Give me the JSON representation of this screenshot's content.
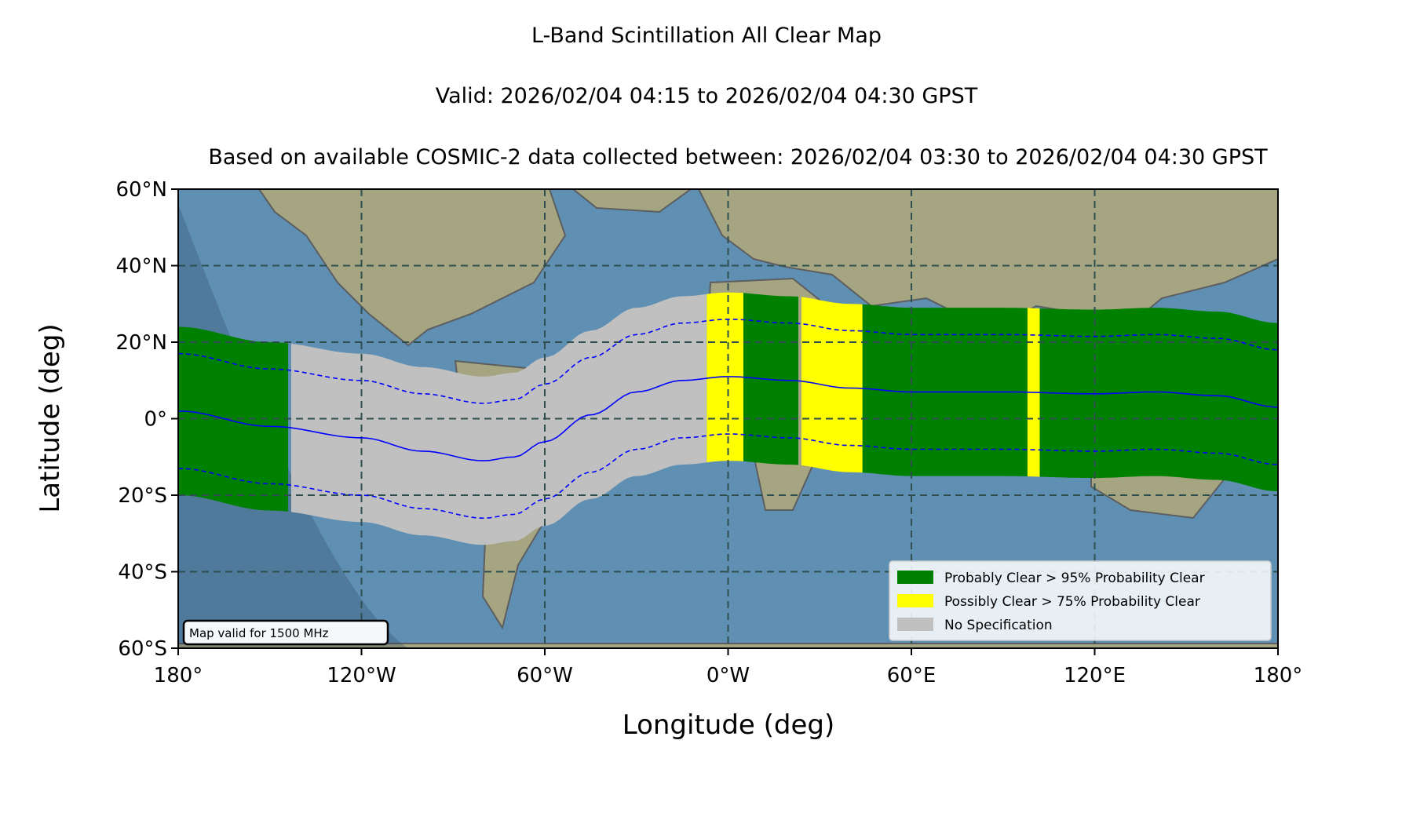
{
  "chart_data": {
    "type": "map",
    "title": "L-Band Scintillation All Clear Map",
    "valid_line": "Valid: 2026/02/04 04:15 to 2026/02/04 04:30 GPST",
    "source_line": "Based on available COSMIC-2 data collected between: 2026/02/04 03:30 to 2026/02/04 04:30 GPST",
    "xlabel": "Longitude (deg)",
    "ylabel": "Latitude (deg)",
    "xlim": [
      -180,
      180
    ],
    "ylim": [
      -60,
      60
    ],
    "grid": true,
    "x_ticks": [
      {
        "value": -180,
        "label": "180°"
      },
      {
        "value": -120,
        "label": "120°W"
      },
      {
        "value": -60,
        "label": "60°W"
      },
      {
        "value": 0,
        "label": "0°W"
      },
      {
        "value": 60,
        "label": "60°E"
      },
      {
        "value": 120,
        "label": "120°E"
      },
      {
        "value": 180,
        "label": "180°"
      }
    ],
    "y_ticks": [
      {
        "value": 60,
        "label": "60°N"
      },
      {
        "value": 40,
        "label": "40°N"
      },
      {
        "value": 20,
        "label": "20°N"
      },
      {
        "value": 0,
        "label": "0°"
      },
      {
        "value": -20,
        "label": "20°S"
      },
      {
        "value": -40,
        "label": "40°S"
      },
      {
        "value": -60,
        "label": "60°S"
      }
    ],
    "legend": {
      "position": "lower-right",
      "entries": [
        {
          "label": "Probably Clear > 95% Probability Clear",
          "color": "#008000"
        },
        {
          "label": "Possibly Clear > 75% Probability Clear",
          "color": "#ffff00"
        },
        {
          "label": "No Specification",
          "color": "#c0c0c0"
        }
      ]
    },
    "annotation": "Map valid for 1500 MHz",
    "colors": {
      "ocean": "#5f8fb3",
      "land": "#a9a780",
      "night": "#1f3a55",
      "line": "#0000ff",
      "grid": "#2f4f4f"
    },
    "dip_equator": [
      {
        "lon": -180,
        "lat": 2
      },
      {
        "lon": -150,
        "lat": -2
      },
      {
        "lon": -120,
        "lat": -5
      },
      {
        "lon": -100,
        "lat": -8.5
      },
      {
        "lon": -80,
        "lat": -11
      },
      {
        "lon": -70,
        "lat": -10
      },
      {
        "lon": -60,
        "lat": -6
      },
      {
        "lon": -45,
        "lat": 1
      },
      {
        "lon": -30,
        "lat": 7
      },
      {
        "lon": -15,
        "lat": 10
      },
      {
        "lon": 0,
        "lat": 11
      },
      {
        "lon": 20,
        "lat": 10
      },
      {
        "lon": 40,
        "lat": 8
      },
      {
        "lon": 60,
        "lat": 7
      },
      {
        "lon": 90,
        "lat": 7
      },
      {
        "lon": 120,
        "lat": 6.5
      },
      {
        "lon": 140,
        "lat": 7
      },
      {
        "lon": 160,
        "lat": 6
      },
      {
        "lon": 180,
        "lat": 3
      }
    ],
    "band_half_width_deg": 22,
    "dashed_offset_deg": 15,
    "bands": [
      {
        "from": -180,
        "to": -143,
        "class": "probably_clear"
      },
      {
        "from": -143,
        "to": -7,
        "class": "no_specification"
      },
      {
        "from": -7,
        "to": 5,
        "class": "possibly_clear"
      },
      {
        "from": 5,
        "to": 24,
        "class": "probably_clear"
      },
      {
        "from": 24,
        "to": 44,
        "class": "possibly_clear"
      },
      {
        "from": 44,
        "to": 98,
        "class": "probably_clear"
      },
      {
        "from": 98,
        "to": 102,
        "class": "possibly_clear"
      },
      {
        "from": 102,
        "to": 180,
        "class": "probably_clear"
      }
    ]
  }
}
